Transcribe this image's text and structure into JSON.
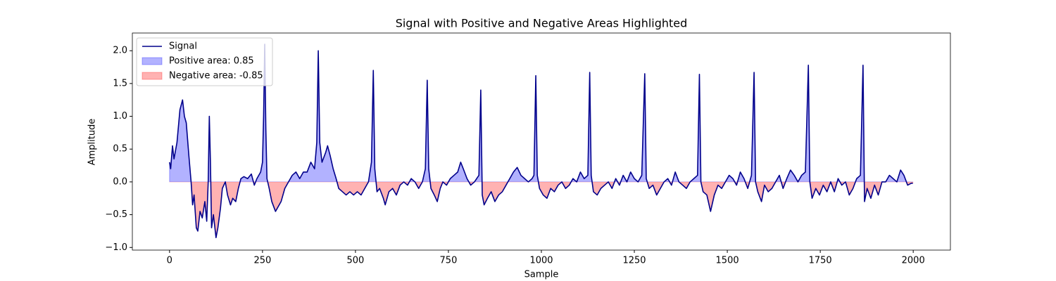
{
  "chart_data": {
    "type": "line",
    "title": "Signal with Positive and Negative Areas Highlighted",
    "x_label": "Sample",
    "y_label": "Amplitude",
    "xlim": [
      -100,
      2100
    ],
    "ylim": [
      -1.04,
      2.27
    ],
    "xticks": [
      0,
      250,
      500,
      750,
      1000,
      1250,
      1500,
      1750,
      2000
    ],
    "yticks": [
      {
        "value": -1.0,
        "label": "−1.0"
      },
      {
        "value": -0.5,
        "label": "−0.5"
      },
      {
        "value": 0,
        "label": "0.0"
      },
      {
        "value": 0.5,
        "label": "0.5"
      },
      {
        "value": 1.0,
        "label": "1.0"
      },
      {
        "value": 1.5,
        "label": "1.5"
      },
      {
        "value": 2.0,
        "label": "2.0"
      }
    ],
    "legend": "upper left",
    "x": [
      0,
      3,
      8,
      12,
      20,
      28,
      35,
      40,
      45,
      52,
      58,
      62,
      66,
      72,
      76,
      82,
      88,
      95,
      100,
      104,
      107,
      110,
      113,
      118,
      125,
      130,
      137,
      142,
      150,
      156,
      164,
      170,
      178,
      185,
      192,
      200,
      210,
      220,
      228,
      235,
      245,
      250,
      253,
      256,
      259,
      262,
      268,
      275,
      285,
      292,
      300,
      310,
      320,
      330,
      340,
      350,
      360,
      370,
      380,
      390,
      396,
      400,
      404,
      410,
      420,
      425,
      432,
      440,
      448,
      455,
      465,
      475,
      485,
      495,
      505,
      515,
      525,
      535,
      543,
      548,
      552,
      558,
      565,
      575,
      580,
      590,
      600,
      610,
      620,
      630,
      640,
      650,
      660,
      670,
      680,
      688,
      693,
      697,
      703,
      712,
      720,
      728,
      735,
      745,
      755,
      765,
      775,
      783,
      790,
      800,
      810,
      820,
      832,
      837,
      841,
      846,
      855,
      865,
      875,
      885,
      895,
      905,
      915,
      925,
      935,
      945,
      955,
      965,
      975,
      980,
      985,
      989,
      995,
      1005,
      1015,
      1025,
      1035,
      1045,
      1055,
      1065,
      1075,
      1085,
      1095,
      1105,
      1115,
      1125,
      1130,
      1134,
      1140,
      1150,
      1160,
      1170,
      1180,
      1190,
      1200,
      1210,
      1220,
      1230,
      1240,
      1250,
      1260,
      1270,
      1278,
      1282,
      1290,
      1300,
      1310,
      1320,
      1330,
      1340,
      1350,
      1360,
      1370,
      1380,
      1390,
      1400,
      1410,
      1420,
      1425,
      1429,
      1435,
      1445,
      1455,
      1465,
      1475,
      1485,
      1495,
      1505,
      1515,
      1525,
      1535,
      1545,
      1555,
      1565,
      1572,
      1576,
      1582,
      1592,
      1600,
      1610,
      1620,
      1630,
      1640,
      1650,
      1660,
      1670,
      1680,
      1690,
      1700,
      1710,
      1718,
      1722,
      1728,
      1738,
      1748,
      1758,
      1768,
      1778,
      1788,
      1798,
      1808,
      1818,
      1828,
      1838,
      1848,
      1858,
      1865,
      1869,
      1876,
      1886,
      1896,
      1906,
      1916,
      1926,
      1936,
      1946,
      1956,
      1966,
      1975,
      1985,
      1995,
      1999
    ],
    "series": [
      {
        "name": "Signal",
        "color": "#00008b",
        "values": [
          0.3,
          0.2,
          0.55,
          0.35,
          0.6,
          1.1,
          1.25,
          1.0,
          0.9,
          0.4,
          0.0,
          -0.35,
          -0.2,
          -0.7,
          -0.75,
          -0.45,
          -0.55,
          -0.3,
          -0.6,
          0.0,
          1.0,
          0.3,
          -0.7,
          -0.5,
          -0.85,
          -0.7,
          -0.4,
          -0.1,
          0.0,
          -0.2,
          -0.35,
          -0.25,
          -0.3,
          -0.1,
          0.05,
          0.08,
          0.05,
          0.12,
          -0.05,
          0.05,
          0.15,
          0.3,
          1.0,
          2.1,
          0.8,
          0.05,
          -0.1,
          -0.3,
          -0.45,
          -0.38,
          -0.3,
          -0.1,
          0.0,
          0.1,
          0.15,
          0.05,
          0.15,
          0.15,
          0.3,
          0.2,
          0.6,
          2.0,
          0.6,
          0.3,
          0.45,
          0.55,
          0.4,
          0.2,
          0.05,
          -0.1,
          -0.15,
          -0.2,
          -0.15,
          -0.2,
          -0.15,
          -0.2,
          -0.1,
          0.0,
          0.3,
          1.7,
          0.2,
          -0.15,
          -0.1,
          -0.25,
          -0.35,
          -0.15,
          -0.1,
          -0.2,
          -0.05,
          0.0,
          -0.05,
          0.05,
          0.0,
          -0.1,
          0.0,
          0.2,
          1.55,
          0.2,
          -0.1,
          -0.2,
          -0.3,
          -0.1,
          0.0,
          -0.05,
          0.05,
          0.1,
          0.15,
          0.3,
          0.2,
          0.05,
          -0.05,
          0.0,
          0.1,
          1.4,
          -0.2,
          -0.35,
          -0.25,
          -0.15,
          -0.3,
          -0.2,
          -0.15,
          -0.05,
          0.05,
          0.15,
          0.22,
          0.1,
          0.05,
          0.0,
          0.05,
          0.1,
          1.62,
          0.1,
          -0.1,
          -0.2,
          -0.25,
          -0.1,
          -0.15,
          -0.05,
          0.0,
          -0.1,
          -0.05,
          0.05,
          0.0,
          0.15,
          0.05,
          0.1,
          1.67,
          0.1,
          -0.15,
          -0.2,
          -0.1,
          -0.05,
          0.0,
          -0.1,
          0.05,
          -0.05,
          0.1,
          0.0,
          0.15,
          0.05,
          0.0,
          0.1,
          1.65,
          0.05,
          -0.1,
          -0.05,
          -0.2,
          -0.1,
          0.0,
          0.05,
          -0.05,
          0.15,
          0.0,
          -0.05,
          -0.1,
          0.0,
          0.05,
          0.1,
          1.64,
          0.0,
          -0.15,
          -0.2,
          -0.45,
          -0.2,
          -0.05,
          -0.1,
          0.0,
          0.1,
          0.05,
          -0.05,
          0.15,
          0.05,
          -0.1,
          0.1,
          1.67,
          0.0,
          -0.15,
          -0.3,
          -0.05,
          -0.15,
          -0.1,
          0.0,
          0.1,
          -0.1,
          0.05,
          0.18,
          0.1,
          0.0,
          0.1,
          0.15,
          1.78,
          0.0,
          -0.25,
          -0.1,
          -0.2,
          -0.05,
          -0.15,
          0.0,
          -0.15,
          0.05,
          -0.05,
          0.0,
          -0.2,
          -0.1,
          0.05,
          0.1,
          1.78,
          -0.3,
          -0.1,
          -0.25,
          -0.05,
          -0.2,
          0.0,
          0.0,
          0.1,
          0.05,
          0.0,
          0.18,
          0.1,
          -0.05,
          -0.02,
          -0.02
        ]
      }
    ],
    "areas": [
      {
        "name": "Positive area: 0.85",
        "color": "#0000ff",
        "side": "above"
      },
      {
        "name": "Negative area: -0.85",
        "color": "#ff0000",
        "side": "below"
      }
    ]
  }
}
